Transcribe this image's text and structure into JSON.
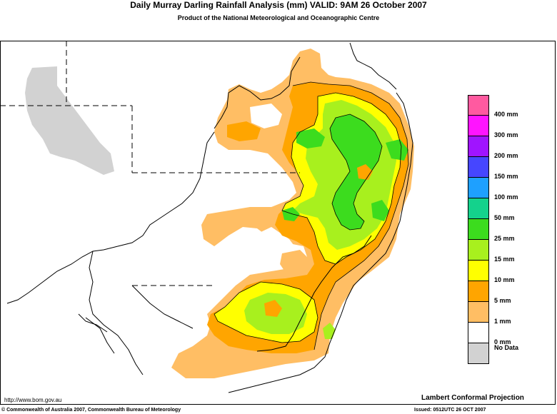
{
  "header": {
    "title": "Daily Murray Darling Rainfall Analysis (mm)  VALID: 9AM 26 October 2007",
    "subtitle": "Product of the National Meteorological and Oceanographic Centre"
  },
  "legend": {
    "items": [
      {
        "label": "400 mm",
        "color": "#ff5aa0"
      },
      {
        "label": "300 mm",
        "color": "#ff14ff"
      },
      {
        "label": "200 mm",
        "color": "#a014ff"
      },
      {
        "label": "150 mm",
        "color": "#4646ff"
      },
      {
        "label": "100 mm",
        "color": "#1ea0ff"
      },
      {
        "label": "50 mm",
        "color": "#14d28c"
      },
      {
        "label": "25 mm",
        "color": "#3cdc1e"
      },
      {
        "label": "15 mm",
        "color": "#a8f01e"
      },
      {
        "label": "10 mm",
        "color": "#ffff00"
      },
      {
        "label": "5 mm",
        "color": "#ffa500"
      },
      {
        "label": "1 mm",
        "color": "#ffbe64"
      },
      {
        "label": "0 mm",
        "color": "#ffffff"
      },
      {
        "label": "No Data",
        "color": "#d2d2d2"
      }
    ]
  },
  "footer": {
    "url": "http://www.bom.gov.au",
    "projection": "Lambert Conformal Projection",
    "copyright": "© Commonwealth of Australia 2007, Commonwealth Bureau of Meteorology",
    "issued": "Issued: 0512UTC 26 OCT 2007"
  },
  "colors": {
    "rain_1mm": "#ffbe64",
    "rain_5mm": "#ffa500",
    "rain_10mm": "#ffff00",
    "rain_15mm": "#a8f01e",
    "rain_25mm": "#3cdc1e",
    "no_data": "#d2d2d2",
    "outline": "#000000"
  }
}
